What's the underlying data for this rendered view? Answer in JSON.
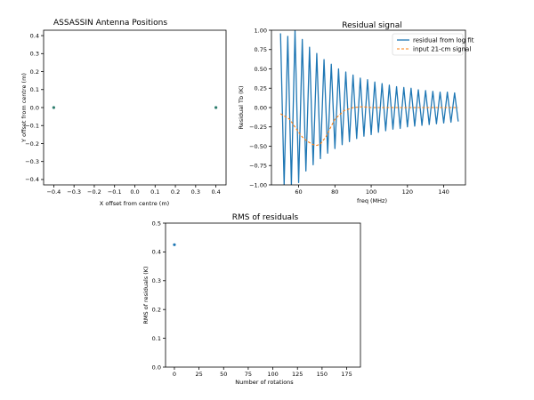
{
  "chart_data": [
    {
      "type": "scatter",
      "title": "ASSASSIN Antenna Positions",
      "xlabel": "X offset from centre (m)",
      "ylabel": "Y offset from centre (m)",
      "xlim": [
        -0.45,
        0.45
      ],
      "ylim": [
        -0.43,
        0.43
      ],
      "xticks": [
        -0.4,
        -0.3,
        -0.2,
        -0.1,
        0.0,
        0.1,
        0.2,
        0.3,
        0.4
      ],
      "xtick_labels": [
        "−0.4",
        "−0.3",
        "−0.2",
        "−0.1",
        "0.0",
        "0.1",
        "0.2",
        "0.3",
        "0.4"
      ],
      "yticks": [
        0.4,
        0.3,
        0.2,
        0.1,
        0.0,
        -0.1,
        -0.2,
        -0.3,
        -0.4
      ],
      "ytick_labels": [
        "0.4",
        "0.3",
        "0.2",
        "0.1",
        "0.0",
        "−0.1",
        "−0.2",
        "−0.3",
        "−0.4"
      ],
      "points": [
        {
          "x": -0.4,
          "y": 0.0
        },
        {
          "x": 0.4,
          "y": 0.0
        }
      ],
      "color": "#2e7d6e",
      "grid": false
    },
    {
      "type": "line",
      "title": "Residual signal",
      "xlabel": "freq (MHz)",
      "ylabel": "Residual Tb (K)",
      "xlim": [
        45,
        152
      ],
      "ylim": [
        -1.0,
        1.0
      ],
      "xticks": [
        60,
        80,
        100,
        120,
        140
      ],
      "xtick_labels": [
        "60",
        "80",
        "100",
        "120",
        "140"
      ],
      "yticks": [
        1.0,
        0.75,
        0.5,
        0.25,
        0.0,
        -0.25,
        -0.5,
        -0.75,
        -1.0
      ],
      "ytick_labels": [
        "1.00",
        "0.75",
        "0.50",
        "0.25",
        "0.00",
        "−0.25",
        "−0.50",
        "−0.75",
        "−1.00"
      ],
      "legend_position": "top-right",
      "grid": false,
      "series": [
        {
          "name": "residual from log fit",
          "color": "#1f77b4",
          "style": "solid",
          "x": [
            50,
            52,
            54,
            56,
            58,
            60,
            62,
            64,
            66,
            68,
            70,
            72,
            74,
            76,
            78,
            80,
            82,
            84,
            86,
            88,
            90,
            92,
            94,
            96,
            98,
            100,
            102,
            104,
            106,
            108,
            110,
            112,
            114,
            116,
            118,
            120,
            122,
            124,
            126,
            128,
            130,
            132,
            134,
            136,
            138,
            140,
            142,
            144,
            146,
            148
          ],
          "y": [
            0.96,
            -1.0,
            0.92,
            -1.0,
            1.0,
            -0.97,
            0.88,
            -0.82,
            0.78,
            -0.74,
            0.7,
            -0.66,
            0.62,
            -0.59,
            0.56,
            -0.53,
            0.5,
            -0.48,
            0.46,
            -0.44,
            0.42,
            -0.4,
            0.38,
            -0.37,
            0.36,
            -0.35,
            0.33,
            -0.32,
            0.31,
            -0.3,
            0.29,
            -0.28,
            0.27,
            -0.27,
            0.26,
            -0.25,
            0.25,
            -0.24,
            0.23,
            -0.23,
            0.22,
            -0.22,
            0.21,
            -0.21,
            0.2,
            -0.2,
            0.2,
            -0.19,
            0.19,
            -0.18
          ]
        },
        {
          "name": "input 21-cm signal",
          "color": "#ff7f0e",
          "style": "dashed",
          "x": [
            50,
            55,
            60,
            62,
            65,
            68,
            70,
            72,
            75,
            78,
            80,
            85,
            90,
            95,
            100,
            110,
            120,
            130,
            140,
            148
          ],
          "y": [
            -0.08,
            -0.15,
            -0.32,
            -0.38,
            -0.44,
            -0.48,
            -0.49,
            -0.47,
            -0.38,
            -0.24,
            -0.15,
            -0.04,
            0.0,
            0.01,
            0.0,
            0.0,
            0.0,
            0.0,
            0.0,
            0.0
          ]
        }
      ]
    },
    {
      "type": "scatter",
      "title": "RMS of residuals",
      "xlabel": "Number of rotations",
      "ylabel": "RMS of residuals (K)",
      "xlim": [
        -9,
        189
      ],
      "ylim": [
        0.0,
        0.5
      ],
      "xticks": [
        0,
        25,
        50,
        75,
        100,
        125,
        150,
        175
      ],
      "xtick_labels": [
        "0",
        "25",
        "50",
        "75",
        "100",
        "125",
        "150",
        "175"
      ],
      "yticks": [
        0.5,
        0.4,
        0.3,
        0.2,
        0.1,
        0.0
      ],
      "ytick_labels": [
        "0.5",
        "0.4",
        "0.3",
        "0.2",
        "0.1",
        "0.0"
      ],
      "points": [
        {
          "x": 0,
          "y": 0.425
        }
      ],
      "color": "#1f77b4",
      "grid": false
    }
  ]
}
